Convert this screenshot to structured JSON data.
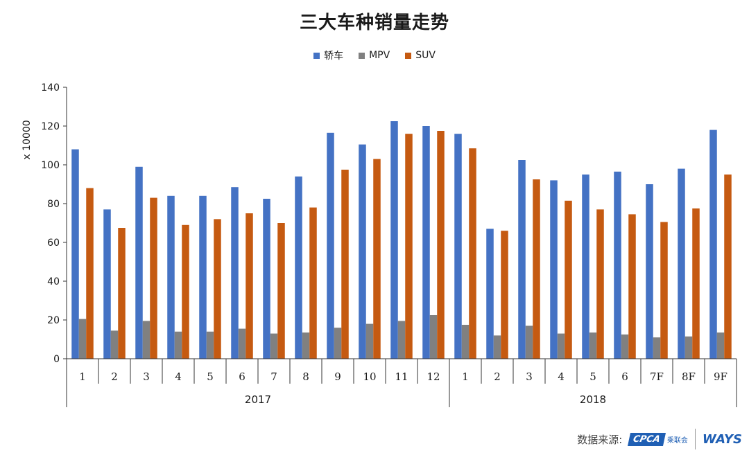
{
  "chart_data": {
    "type": "bar",
    "title": "三大车种销量走势",
    "ylabel": "x 10000",
    "ylim": [
      0,
      140
    ],
    "yticks": [
      0,
      20,
      40,
      60,
      80,
      100,
      120,
      140
    ],
    "legend_position": "top-center",
    "grid": false,
    "categories": [
      "1",
      "2",
      "3",
      "4",
      "5",
      "6",
      "7",
      "8",
      "9",
      "10",
      "11",
      "12",
      "1",
      "2",
      "3",
      "4",
      "5",
      "6",
      "7F",
      "8F",
      "9F"
    ],
    "groups": [
      {
        "label": "2017",
        "count": 12
      },
      {
        "label": "2018",
        "count": 9
      }
    ],
    "series": [
      {
        "name": "轿车",
        "color": "#4472c4",
        "values": [
          108,
          77,
          99,
          84,
          84,
          88.5,
          82.5,
          94,
          116.5,
          110.5,
          122.5,
          120,
          116,
          67,
          102.5,
          92,
          95,
          96.5,
          90,
          98,
          118
        ]
      },
      {
        "name": "MPV",
        "color": "#808080",
        "values": [
          20.5,
          14.5,
          19.5,
          14,
          14,
          15.5,
          13,
          13.5,
          16,
          18,
          19.5,
          22.5,
          17.5,
          12,
          17,
          13,
          13.5,
          12.5,
          11,
          11.5,
          13.5
        ]
      },
      {
        "name": "SUV",
        "color": "#c55a11",
        "values": [
          88,
          67.5,
          83,
          69,
          72,
          75,
          70,
          78,
          97.5,
          103,
          116,
          117.5,
          108.5,
          66,
          92.5,
          81.5,
          77,
          74.5,
          70.5,
          77.5,
          95
        ]
      }
    ]
  },
  "footer": {
    "source_label": "数据来源:",
    "cpca_text": "CPCA",
    "cpca_sub": "乘联会",
    "ways_text": "WAYS"
  }
}
